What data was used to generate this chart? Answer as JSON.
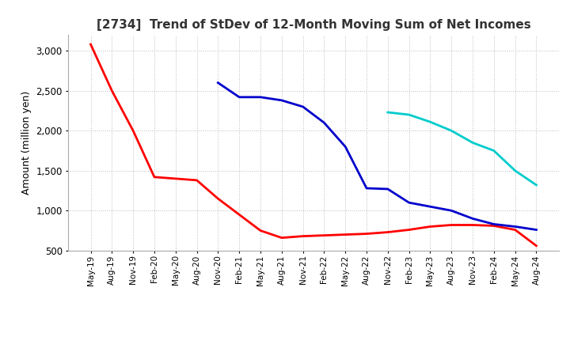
{
  "title": "[2734]  Trend of StDev of 12-Month Moving Sum of Net Incomes",
  "ylabel": "Amount (million yen)",
  "background_color": "#ffffff",
  "grid_color": "#bbbbbb",
  "ylim": [
    500,
    3200
  ],
  "yticks": [
    500,
    1000,
    1500,
    2000,
    2500,
    3000
  ],
  "line_colors": {
    "3y": "#ff0000",
    "5y": "#0000cc",
    "7y": "#00cccc",
    "10y": "#006600"
  },
  "x_labels": [
    "May-19",
    "Aug-19",
    "Nov-19",
    "Feb-20",
    "May-20",
    "Aug-20",
    "Nov-20",
    "Feb-21",
    "May-21",
    "Aug-21",
    "Nov-21",
    "Feb-22",
    "May-22",
    "Aug-22",
    "Nov-22",
    "Feb-23",
    "May-23",
    "Aug-23",
    "Nov-23",
    "Feb-24",
    "May-24",
    "Aug-24"
  ],
  "series_3y": [
    3080,
    2500,
    2000,
    1420,
    1400,
    1380,
    1150,
    950,
    750,
    660,
    680,
    690,
    700,
    710,
    730,
    760,
    800,
    820,
    820,
    810,
    760,
    560
  ],
  "series_5y": [
    null,
    null,
    null,
    null,
    null,
    null,
    2600,
    2420,
    2420,
    2380,
    2300,
    2100,
    1800,
    1280,
    1270,
    1100,
    1050,
    1000,
    900,
    830,
    800,
    760
  ],
  "series_7y": [
    null,
    null,
    null,
    null,
    null,
    null,
    null,
    null,
    null,
    null,
    null,
    null,
    null,
    null,
    2230,
    2200,
    2110,
    2000,
    1850,
    1750,
    1500,
    1320
  ],
  "series_10y": [
    null,
    null,
    null,
    null,
    null,
    null,
    null,
    null,
    null,
    null,
    null,
    null,
    null,
    null,
    null,
    null,
    null,
    null,
    null,
    null,
    null,
    null
  ]
}
